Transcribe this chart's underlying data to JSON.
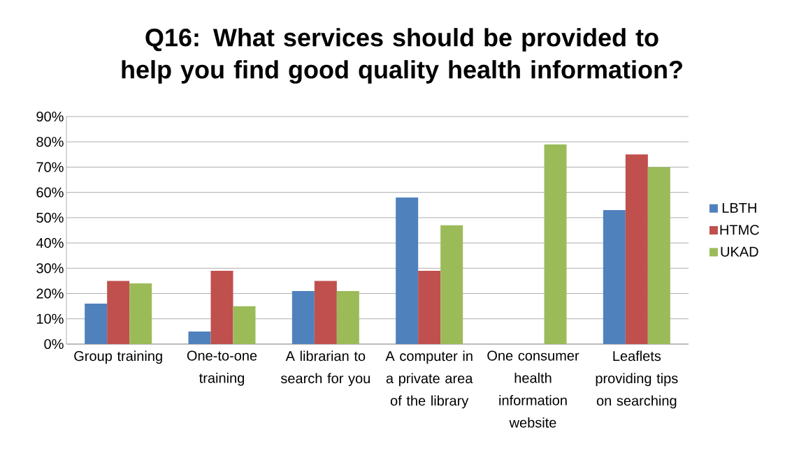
{
  "chart_data": {
    "type": "bar",
    "title": "Q16: What services should be provided to help you find good quality health information?",
    "categories": [
      "Group training",
      "One-to-one training",
      "A librarian to search for you",
      "A computer in a private area of the library",
      "One consumer health information website",
      "Leaflets providing tips on searching"
    ],
    "series": [
      {
        "name": "LBTH",
        "color": "#4f81bd",
        "values": [
          16,
          5,
          21,
          58,
          0,
          53
        ]
      },
      {
        "name": "HTMC",
        "color": "#c0504d",
        "values": [
          25,
          29,
          25,
          29,
          0,
          75
        ]
      },
      {
        "name": "UKAD",
        "color": "#9bbb59",
        "values": [
          24,
          15,
          21,
          47,
          79,
          70
        ]
      }
    ],
    "ylim": [
      0,
      90
    ],
    "yticks": [
      {
        "value": 0,
        "label": "0%"
      },
      {
        "value": 10,
        "label": "10%"
      },
      {
        "value": 20,
        "label": "20%"
      },
      {
        "value": 30,
        "label": "30%"
      },
      {
        "value": 40,
        "label": "40%"
      },
      {
        "value": 50,
        "label": "50%"
      },
      {
        "value": 60,
        "label": "60%"
      },
      {
        "value": 70,
        "label": "70%"
      },
      {
        "value": 80,
        "label": "80%"
      },
      {
        "value": 90,
        "label": "90%"
      }
    ],
    "grid": "y",
    "legend": "right"
  }
}
